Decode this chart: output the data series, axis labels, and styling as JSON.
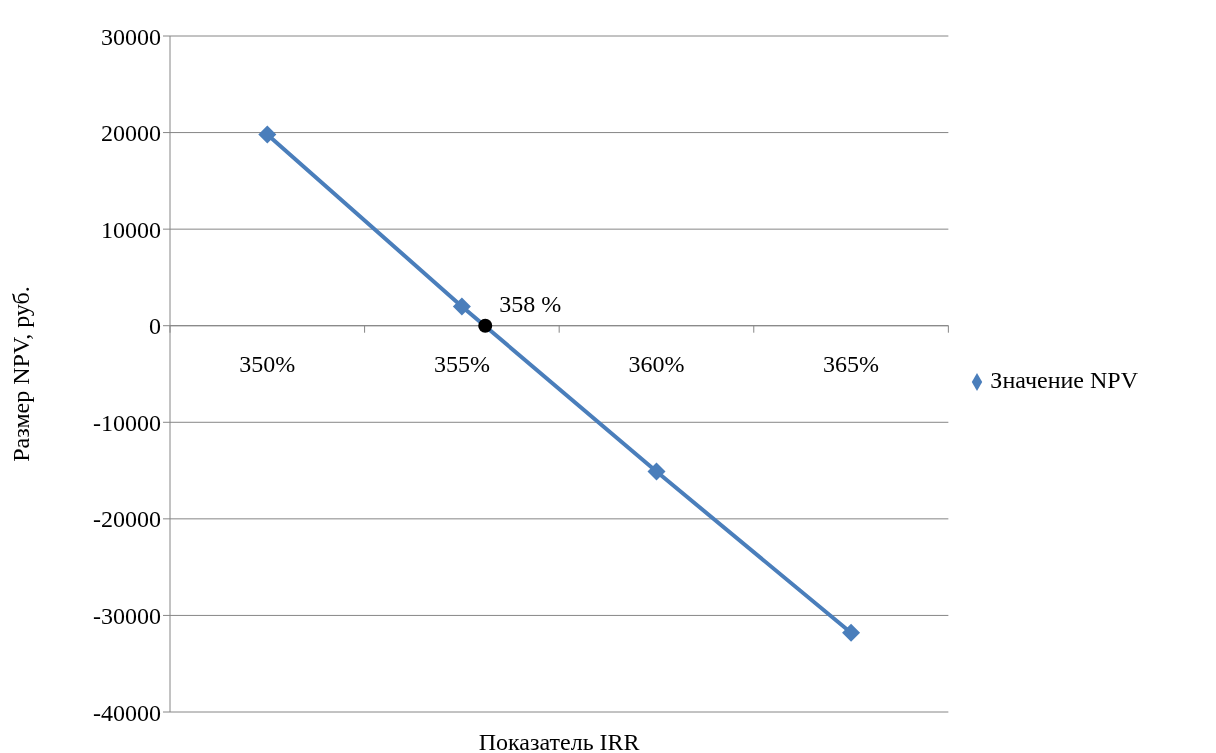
{
  "chart_data": {
    "type": "line",
    "xlabel": "Показатель IRR",
    "ylabel": "Размер NPV, руб.",
    "x": [
      350,
      355,
      360,
      365
    ],
    "series": [
      {
        "name": "Значение NPV",
        "color": "#4a7ebb",
        "values": [
          19800,
          2000,
          -15100,
          -31800
        ]
      },
      {
        "type": "scatter",
        "color": "#000000",
        "x": [
          355.6
        ],
        "values": [
          0
        ],
        "marker": "circle"
      }
    ],
    "xlim": [
      347.5,
      367.5
    ],
    "xticks": [
      {
        "value": 347.5,
        "label": null
      },
      {
        "value": 350,
        "label": "350%"
      },
      {
        "value": 352.5,
        "label": null
      },
      {
        "value": 355,
        "label": "355%"
      },
      {
        "value": 357.5,
        "label": null
      },
      {
        "value": 360,
        "label": "360%"
      },
      {
        "value": 362.5,
        "label": null
      },
      {
        "value": 365,
        "label": "365%"
      },
      {
        "value": 367.5,
        "label": null
      }
    ],
    "ylim": [
      -40000,
      30000
    ],
    "yticks": [
      -40000,
      -30000,
      -20000,
      -10000,
      0,
      10000,
      20000,
      30000
    ],
    "grid": "y",
    "legend": "right",
    "marker": "diamond",
    "line_style": "solid",
    "annotations": [
      "358 %"
    ]
  }
}
